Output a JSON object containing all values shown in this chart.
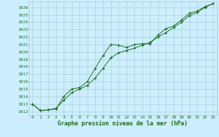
{
  "title": "Graphe pression niveau de la mer (hPa)",
  "background_color": "#cceeff",
  "grid_color": "#a0c8c8",
  "line_color": "#1a6b1a",
  "marker_color": "#1a6b1a",
  "xlim": [
    -0.5,
    23.5
  ],
  "ylim": [
    1011.5,
    1026.8
  ],
  "yticks": [
    1012,
    1013,
    1014,
    1015,
    1016,
    1017,
    1018,
    1019,
    1020,
    1021,
    1022,
    1023,
    1024,
    1025,
    1026
  ],
  "xticks": [
    0,
    1,
    2,
    3,
    4,
    5,
    6,
    7,
    8,
    9,
    10,
    11,
    12,
    13,
    14,
    15,
    16,
    17,
    18,
    19,
    20,
    21,
    22,
    23
  ],
  "series1_x": [
    0,
    1,
    2,
    3,
    4,
    5,
    6,
    7,
    8,
    9,
    10,
    11,
    12,
    13,
    14,
    15,
    16,
    17,
    18,
    19,
    20,
    21,
    22,
    23
  ],
  "series1_y": [
    1013.0,
    1012.1,
    1012.2,
    1012.3,
    1014.0,
    1015.0,
    1015.2,
    1016.0,
    1017.8,
    1019.5,
    1021.0,
    1020.9,
    1020.6,
    1021.0,
    1021.1,
    1021.1,
    1022.3,
    1023.1,
    1023.5,
    1024.3,
    1025.2,
    1025.5,
    1026.1,
    1026.5
  ],
  "series2_x": [
    0,
    1,
    2,
    3,
    4,
    5,
    6,
    7,
    8,
    9,
    10,
    11,
    12,
    13,
    14,
    15,
    16,
    17,
    18,
    19,
    20,
    21,
    22,
    23
  ],
  "series2_y": [
    1013.0,
    1012.1,
    1012.2,
    1012.4,
    1013.5,
    1014.5,
    1015.0,
    1015.5,
    1016.5,
    1017.8,
    1019.2,
    1019.9,
    1020.2,
    1020.5,
    1020.9,
    1021.3,
    1022.0,
    1022.6,
    1023.3,
    1024.0,
    1024.9,
    1025.3,
    1026.0,
    1026.5
  ]
}
